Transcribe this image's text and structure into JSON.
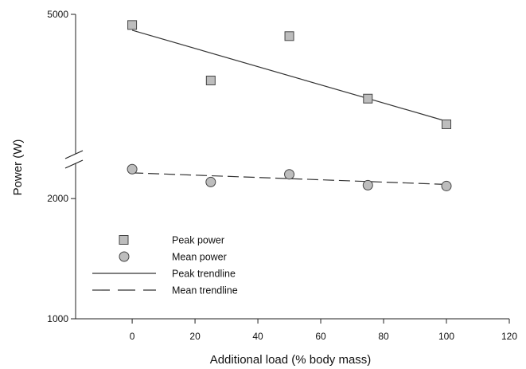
{
  "chart_data": {
    "type": "scatter",
    "xlabel": "Additional load (% body mass)",
    "ylabel": "Power (W)",
    "x_ticks": [
      0,
      20,
      40,
      60,
      80,
      100,
      120
    ],
    "x_tick_labels": [
      "0",
      "20",
      "40",
      "60",
      "80",
      "100",
      "120"
    ],
    "xlim": [
      -18,
      120
    ],
    "y_ticks": [
      1000,
      2000,
      5000
    ],
    "y_tick_labels": [
      "1000",
      "2000",
      "5000"
    ],
    "axis_break": true,
    "lower_segment_ylim": [
      1000,
      2450
    ],
    "upper_segment_ylim": [
      2850,
      5000
    ],
    "grid": false,
    "legend_position": "bottom-left",
    "series": [
      {
        "name": "Peak power",
        "marker": "square",
        "color": "#bdbdbd",
        "x": [
          0,
          25,
          50,
          75,
          100
        ],
        "y": [
          4790,
          3830,
          4580,
          3560,
          3210
        ]
      },
      {
        "name": "Mean power",
        "marker": "circle",
        "color": "#bdbdbd",
        "x": [
          0,
          25,
          50,
          75,
          100
        ],
        "y": [
          2370,
          2200,
          2300,
          2160,
          2150
        ]
      }
    ],
    "trendlines": [
      {
        "name": "Peak trendline",
        "style": "solid",
        "x": [
          0,
          100
        ],
        "y": [
          4690,
          3250
        ]
      },
      {
        "name": "Mean trendline",
        "style": "dashed",
        "x": [
          0,
          100
        ],
        "y": [
          2320,
          2170
        ]
      }
    ]
  }
}
